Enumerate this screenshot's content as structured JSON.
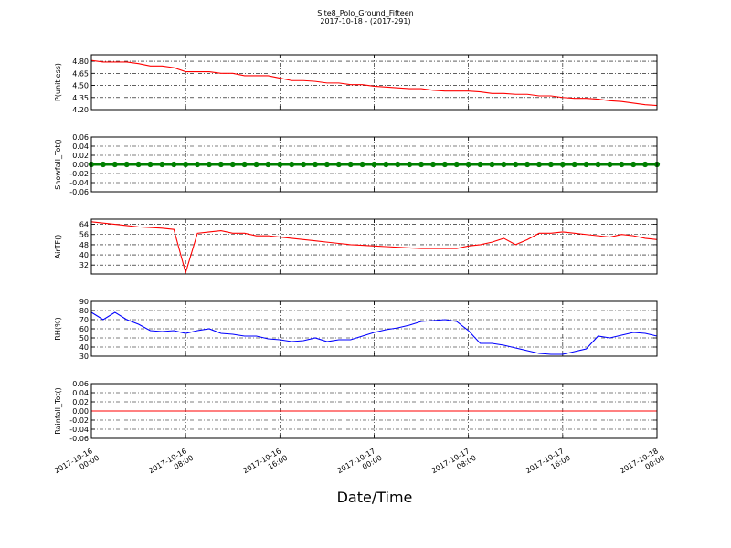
{
  "chart_data": {
    "type": "line",
    "title": "Site8_Polo_Ground_Fifteen",
    "subtitle": "2017-10-18 - (2017-291)",
    "xlabel": "Date/Time",
    "grid": true,
    "x": [
      "2017-10-16 00:00",
      "2017-10-16 01:00",
      "2017-10-16 02:00",
      "2017-10-16 03:00",
      "2017-10-16 04:00",
      "2017-10-16 05:00",
      "2017-10-16 06:00",
      "2017-10-16 07:00",
      "2017-10-16 08:00",
      "2017-10-16 09:00",
      "2017-10-16 10:00",
      "2017-10-16 11:00",
      "2017-10-16 12:00",
      "2017-10-16 13:00",
      "2017-10-16 14:00",
      "2017-10-16 15:00",
      "2017-10-16 16:00",
      "2017-10-16 17:00",
      "2017-10-16 18:00",
      "2017-10-16 19:00",
      "2017-10-16 20:00",
      "2017-10-16 21:00",
      "2017-10-16 22:00",
      "2017-10-16 23:00",
      "2017-10-17 00:00",
      "2017-10-17 01:00",
      "2017-10-17 02:00",
      "2017-10-17 03:00",
      "2017-10-17 04:00",
      "2017-10-17 05:00",
      "2017-10-17 06:00",
      "2017-10-17 07:00",
      "2017-10-17 08:00",
      "2017-10-17 09:00",
      "2017-10-17 10:00",
      "2017-10-17 11:00",
      "2017-10-17 12:00",
      "2017-10-17 13:00",
      "2017-10-17 14:00",
      "2017-10-17 15:00",
      "2017-10-17 16:00",
      "2017-10-17 17:00",
      "2017-10-17 18:00",
      "2017-10-17 19:00",
      "2017-10-17 20:00",
      "2017-10-17 21:00",
      "2017-10-17 22:00",
      "2017-10-17 23:00",
      "2017-10-18 00:00"
    ],
    "xlim": [
      "2017-10-16 00:00",
      "2017-10-18 00:00"
    ],
    "xticks": [
      "2017-10-16 00:00",
      "2017-10-16 08:00",
      "2017-10-16 16:00",
      "2017-10-17 00:00",
      "2017-10-17 08:00",
      "2017-10-17 16:00",
      "2017-10-18 00:00"
    ],
    "panels": [
      {
        "ylabel": "P(unitless)",
        "ylim": [
          4.2,
          4.88
        ],
        "yticks": [
          {
            "value": 4.2,
            "label": "4.20"
          },
          {
            "value": 4.35,
            "label": "4.35"
          },
          {
            "value": 4.5,
            "label": "4.50"
          },
          {
            "value": 4.65,
            "label": "4.65"
          },
          {
            "value": 4.8,
            "label": "4.80"
          }
        ],
        "series": [
          {
            "color": "#ff0000",
            "marker": false,
            "values": [
              4.81,
              4.79,
              4.79,
              4.79,
              4.77,
              4.74,
              4.74,
              4.72,
              4.67,
              4.67,
              4.67,
              4.65,
              4.65,
              4.62,
              4.62,
              4.62,
              4.59,
              4.56,
              4.56,
              4.55,
              4.53,
              4.53,
              4.51,
              4.51,
              4.49,
              4.48,
              4.47,
              4.46,
              4.46,
              4.44,
              4.43,
              4.43,
              4.43,
              4.42,
              4.4,
              4.4,
              4.39,
              4.39,
              4.37,
              4.37,
              4.35,
              4.34,
              4.34,
              4.33,
              4.31,
              4.3,
              4.28,
              4.26,
              4.25
            ]
          }
        ]
      },
      {
        "ylabel": "Snowfall_Tot()",
        "ylim": [
          -0.06,
          0.06
        ],
        "yticks": [
          -0.06,
          -0.04,
          -0.02,
          {
            "value": 0,
            "label": "0.00"
          },
          0.02,
          0.04,
          0.06
        ],
        "series": [
          {
            "color": "#008000",
            "marker": true,
            "values": [
              0,
              0,
              0,
              0,
              0,
              0,
              0,
              0,
              0,
              0,
              0,
              0,
              0,
              0,
              0,
              0,
              0,
              0,
              0,
              0,
              0,
              0,
              0,
              0,
              0,
              0,
              0,
              0,
              0,
              0,
              0,
              0,
              0,
              0,
              0,
              0,
              0,
              0,
              0,
              0,
              0,
              0,
              0,
              0,
              0,
              0,
              0,
              0,
              0
            ]
          }
        ]
      },
      {
        "ylabel": "AirTF()",
        "ylim": [
          25,
          68
        ],
        "yticks": [
          32,
          40,
          48,
          56,
          64
        ],
        "series": [
          {
            "color": "#ff0000",
            "marker": false,
            "values": [
              66,
              65,
              64,
              63,
              62,
              61.5,
              61,
              60,
              26,
              57,
              58,
              59,
              57,
              57,
              55,
              55,
              54,
              53,
              52,
              51,
              50,
              49,
              48,
              47.5,
              47,
              46.5,
              46,
              45.5,
              45,
              45,
              45,
              45,
              47,
              48,
              50,
              53,
              48,
              52,
              57,
              57,
              58,
              57,
              56,
              55,
              54,
              56,
              55,
              53,
              52
            ]
          }
        ]
      },
      {
        "ylabel": "RH(%)",
        "ylim": [
          30,
          90
        ],
        "yticks": [
          30,
          40,
          50,
          60,
          70,
          80,
          90
        ],
        "series": [
          {
            "color": "#0000ff",
            "marker": false,
            "values": [
              78,
              70,
              78,
              70,
              65,
              58,
              57,
              58,
              55,
              58,
              60,
              55,
              54,
              52,
              52,
              49,
              48,
              46,
              47,
              50,
              46,
              48,
              48,
              52,
              56,
              59,
              61,
              64,
              68,
              69,
              70,
              68,
              58,
              44,
              44,
              42,
              39,
              36,
              33,
              32,
              32,
              35,
              38,
              52,
              50,
              53,
              56,
              55,
              52
            ]
          }
        ]
      },
      {
        "ylabel": "Rainfall_Tot()",
        "ylim": [
          -0.06,
          0.06
        ],
        "yticks": [
          -0.06,
          -0.04,
          -0.02,
          {
            "value": 0,
            "label": "0.00"
          },
          0.02,
          0.04,
          0.06
        ],
        "series": [
          {
            "color": "#ff0000",
            "marker": false,
            "values": [
              0,
              0,
              0,
              0,
              0,
              0,
              0,
              0,
              0,
              0,
              0,
              0,
              0,
              0,
              0,
              0,
              0,
              0,
              0,
              0,
              0,
              0,
              0,
              0,
              0,
              0,
              0,
              0,
              0,
              0,
              0,
              0,
              0,
              0,
              0,
              0,
              0,
              0,
              0,
              0,
              0,
              0,
              0,
              0,
              0,
              0,
              0,
              0,
              0
            ]
          }
        ]
      }
    ]
  }
}
